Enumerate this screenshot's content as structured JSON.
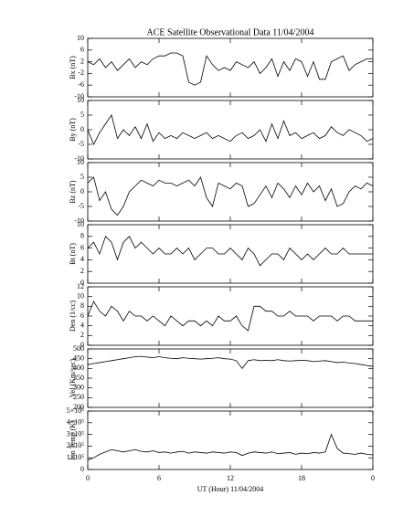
{
  "chart_data": [
    {
      "type": "line",
      "title": "ACE Satellite Observational Data   11/04/2004",
      "ylabel": "Bx (nT)",
      "color": "#000000",
      "x": [
        0,
        0.5,
        1,
        1.5,
        2,
        2.5,
        3,
        3.5,
        4,
        4.5,
        5,
        5.5,
        6,
        6.5,
        7,
        7.5,
        8,
        8.5,
        9,
        9.5,
        10,
        10.5,
        11,
        11.5,
        12,
        12.5,
        13,
        13.5,
        14,
        14.5,
        15,
        15.5,
        16,
        16.5,
        17,
        17.5,
        18,
        18.5,
        19,
        19.5,
        20,
        20.5,
        21,
        21.5,
        22,
        22.5,
        23,
        23.5,
        24
      ],
      "values": [
        2,
        1,
        3,
        0,
        2,
        -1,
        1,
        3,
        0,
        2,
        1,
        3,
        4,
        4,
        5,
        5,
        4,
        -5,
        -6,
        -5,
        4,
        1,
        -1,
        0,
        -1,
        2,
        1,
        0,
        2,
        -2,
        0,
        3,
        -3,
        2,
        -1,
        3,
        2,
        -3,
        2,
        -4,
        -4,
        2,
        3,
        4,
        -1,
        1,
        2,
        3,
        3
      ],
      "xlim": [
        0,
        24
      ],
      "ylim": [
        -10,
        10
      ],
      "yticks": [
        -10,
        -6,
        -2,
        2,
        6,
        10
      ]
    },
    {
      "type": "line",
      "ylabel": "By (nT)",
      "color": "#000000",
      "x": [
        0,
        0.5,
        1,
        1.5,
        2,
        2.5,
        3,
        3.5,
        4,
        4.5,
        5,
        5.5,
        6,
        6.5,
        7,
        7.5,
        8,
        8.5,
        9,
        9.5,
        10,
        10.5,
        11,
        11.5,
        12,
        12.5,
        13,
        13.5,
        14,
        14.5,
        15,
        15.5,
        16,
        16.5,
        17,
        17.5,
        18,
        18.5,
        19,
        19.5,
        20,
        20.5,
        21,
        21.5,
        22,
        22.5,
        23,
        23.5,
        24
      ],
      "values": [
        0,
        -5,
        -1,
        2,
        5,
        -3,
        0,
        -2,
        1,
        -3,
        2,
        -4,
        -1,
        -3,
        -2,
        -3,
        -1,
        -2,
        -3,
        -2,
        -1,
        -3,
        -2,
        -3,
        -4,
        -2,
        -1,
        -3,
        -2,
        0,
        -4,
        2,
        -3,
        3,
        -2,
        -1,
        -3,
        -2,
        -1,
        -3,
        -2,
        1,
        -1,
        -2,
        0,
        -1,
        -2,
        -4,
        -3
      ],
      "xlim": [
        0,
        24
      ],
      "ylim": [
        -10,
        10
      ],
      "yticks": [
        -10,
        -5,
        0,
        5,
        10
      ]
    },
    {
      "type": "line",
      "ylabel": "Bz (nT)",
      "color": "#000000",
      "x": [
        0,
        0.5,
        1,
        1.5,
        2,
        2.5,
        3,
        3.5,
        4,
        4.5,
        5,
        5.5,
        6,
        6.5,
        7,
        7.5,
        8,
        8.5,
        9,
        9.5,
        10,
        10.5,
        11,
        11.5,
        12,
        12.5,
        13,
        13.5,
        14,
        14.5,
        15,
        15.5,
        16,
        16.5,
        17,
        17.5,
        18,
        18.5,
        19,
        19.5,
        20,
        20.5,
        21,
        21.5,
        22,
        22.5,
        23,
        23.5,
        24
      ],
      "values": [
        3,
        5,
        -3,
        0,
        -6,
        -8,
        -5,
        0,
        2,
        4,
        3,
        2,
        4,
        3,
        3,
        2,
        3,
        4,
        2,
        5,
        -2,
        -5,
        3,
        2,
        1,
        3,
        2,
        -5,
        -4,
        -1,
        2,
        -2,
        3,
        1,
        -2,
        2,
        -1,
        3,
        0,
        2,
        -3,
        1,
        -5,
        -4,
        0,
        2,
        1,
        3,
        2
      ],
      "xlim": [
        0,
        24
      ],
      "ylim": [
        -10,
        10
      ],
      "yticks": [
        -10,
        -5,
        0,
        5,
        10
      ]
    },
    {
      "type": "line",
      "ylabel": "Bt (nT)",
      "color": "#000000",
      "x": [
        0,
        0.5,
        1,
        1.5,
        2,
        2.5,
        3,
        3.5,
        4,
        4.5,
        5,
        5.5,
        6,
        6.5,
        7,
        7.5,
        8,
        8.5,
        9,
        9.5,
        10,
        10.5,
        11,
        11.5,
        12,
        12.5,
        13,
        13.5,
        14,
        14.5,
        15,
        15.5,
        16,
        16.5,
        17,
        17.5,
        18,
        18.5,
        19,
        19.5,
        20,
        20.5,
        21,
        21.5,
        22,
        22.5,
        23,
        23.5,
        24
      ],
      "values": [
        6,
        7,
        5,
        8,
        7,
        4,
        7,
        8,
        6,
        7,
        6,
        5,
        6,
        5,
        5,
        6,
        5,
        6,
        4,
        5,
        6,
        6,
        5,
        5,
        6,
        5,
        4,
        6,
        5,
        3,
        4,
        5,
        5,
        4,
        6,
        5,
        4,
        5,
        4,
        5,
        6,
        5,
        5,
        6,
        5,
        5,
        5,
        5,
        5
      ],
      "xlim": [
        0,
        24
      ],
      "ylim": [
        0,
        10
      ],
      "yticks": [
        0,
        2,
        4,
        6,
        8,
        10
      ]
    },
    {
      "type": "line",
      "ylabel": "Den (1/cc)",
      "color": "#000000",
      "x": [
        0,
        0.5,
        1,
        1.5,
        2,
        2.5,
        3,
        3.5,
        4,
        4.5,
        5,
        5.5,
        6,
        6.5,
        7,
        7.5,
        8,
        8.5,
        9,
        9.5,
        10,
        10.5,
        11,
        11.5,
        12,
        12.5,
        13,
        13.5,
        14,
        14.5,
        15,
        15.5,
        16,
        16.5,
        17,
        17.5,
        18,
        18.5,
        19,
        19.5,
        20,
        20.5,
        21,
        21.5,
        22,
        22.5,
        23,
        23.5,
        24
      ],
      "values": [
        6,
        9,
        7,
        6,
        8,
        7,
        5,
        7,
        6,
        6,
        5,
        6,
        5,
        4,
        6,
        5,
        4,
        5,
        5,
        4,
        5,
        4,
        6,
        5,
        5,
        6,
        4,
        3,
        8,
        8,
        7,
        7,
        6,
        6,
        7,
        6,
        6,
        6,
        5,
        6,
        6,
        6,
        5,
        6,
        6,
        5,
        5,
        5,
        5
      ],
      "xlim": [
        0,
        24
      ],
      "ylim": [
        0,
        12
      ],
      "yticks": [
        0,
        2,
        4,
        6,
        8,
        10,
        12
      ]
    },
    {
      "type": "line",
      "ylabel": "Vel (Km/sec)",
      "color": "#000000",
      "x": [
        0,
        0.5,
        1,
        1.5,
        2,
        2.5,
        3,
        3.5,
        4,
        4.5,
        5,
        5.5,
        6,
        6.5,
        7,
        7.5,
        8,
        8.5,
        9,
        9.5,
        10,
        10.5,
        11,
        11.5,
        12,
        12.5,
        13,
        13.5,
        14,
        14.5,
        15,
        15.5,
        16,
        16.5,
        17,
        17.5,
        18,
        18.5,
        19,
        19.5,
        20,
        20.5,
        21,
        21.5,
        22,
        22.5,
        23,
        23.5,
        24
      ],
      "values": [
        420,
        425,
        430,
        435,
        440,
        445,
        450,
        455,
        460,
        462,
        458,
        455,
        460,
        455,
        452,
        450,
        455,
        452,
        450,
        448,
        450,
        452,
        455,
        450,
        448,
        440,
        400,
        440,
        445,
        440,
        442,
        440,
        445,
        440,
        438,
        440,
        442,
        440,
        435,
        438,
        440,
        435,
        430,
        432,
        428,
        425,
        420,
        415,
        410
      ],
      "xlim": [
        0,
        24
      ],
      "ylim": [
        200,
        500
      ],
      "yticks": [
        200,
        250,
        300,
        350,
        400,
        450,
        500
      ]
    },
    {
      "type": "line",
      "ylabel": "Ion Temp (K)",
      "xlabel": "UT (Hour)  11/04/2004",
      "color": "#000000",
      "x": [
        0,
        0.5,
        1,
        1.5,
        2,
        2.5,
        3,
        3.5,
        4,
        4.5,
        5,
        5.5,
        6,
        6.5,
        7,
        7.5,
        8,
        8.5,
        9,
        9.5,
        10,
        10.5,
        11,
        11.5,
        12,
        12.5,
        13,
        13.5,
        14,
        14.5,
        15,
        15.5,
        16,
        16.5,
        17,
        17.5,
        18,
        18.5,
        19,
        19.5,
        20,
        20.5,
        21,
        21.5,
        22,
        22.5,
        23,
        23.5,
        24
      ],
      "values": [
        80000,
        100000,
        130000,
        150000,
        170000,
        160000,
        150000,
        160000,
        170000,
        155000,
        150000,
        160000,
        145000,
        150000,
        140000,
        150000,
        155000,
        140000,
        150000,
        145000,
        140000,
        150000,
        145000,
        140000,
        150000,
        145000,
        120000,
        140000,
        150000,
        145000,
        140000,
        150000,
        135000,
        140000,
        145000,
        130000,
        140000,
        135000,
        145000,
        140000,
        150000,
        300000,
        180000,
        140000,
        135000,
        130000,
        140000,
        130000,
        125000
      ],
      "xlim": [
        0,
        24
      ],
      "ylim": [
        0,
        500000
      ],
      "yticks": [
        0,
        {
          "value": 100000,
          "label": "1×10⁵"
        },
        {
          "value": 200000,
          "label": "2×10⁵"
        },
        {
          "value": 300000,
          "label": "3×10⁵"
        },
        {
          "value": 400000,
          "label": "4×10⁵"
        },
        {
          "value": 500000,
          "label": "5×10⁵"
        }
      ],
      "xticks": [
        0,
        6,
        12,
        18,
        {
          "value": 24,
          "label": "0"
        }
      ]
    }
  ]
}
